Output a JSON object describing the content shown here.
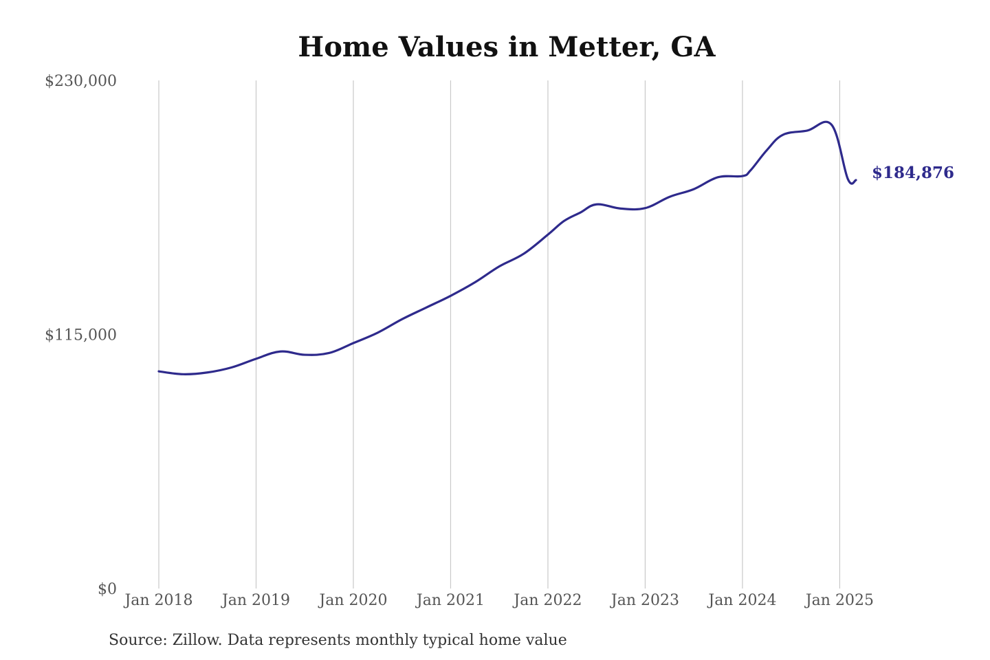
{
  "chart_data": {
    "type": "line",
    "title": "Home Values in Metter, GA",
    "source_note": "Source: Zillow. Data represents monthly typical home value",
    "ylim": [
      0,
      230000
    ],
    "y_ticks": [
      {
        "value": 0,
        "label": "$0"
      },
      {
        "value": 115000,
        "label": "$115,000"
      },
      {
        "value": 230000,
        "label": "$230,000"
      }
    ],
    "x_range": [
      "2018-01",
      "2025-03"
    ],
    "x_ticks": [
      {
        "date": "2018-01",
        "label": "Jan 2018"
      },
      {
        "date": "2019-01",
        "label": "Jan 2019"
      },
      {
        "date": "2020-01",
        "label": "Jan 2020"
      },
      {
        "date": "2021-01",
        "label": "Jan 2021"
      },
      {
        "date": "2022-01",
        "label": "Jan 2022"
      },
      {
        "date": "2023-01",
        "label": "Jan 2023"
      },
      {
        "date": "2024-01",
        "label": "Jan 2024"
      },
      {
        "date": "2025-01",
        "label": "Jan 2025"
      }
    ],
    "grid": {
      "vertical": true,
      "horizontal": false
    },
    "series_color": "#2e2a8c",
    "end_label": "$184,876",
    "x": [
      "2018-01",
      "2018-04",
      "2018-07",
      "2018-10",
      "2019-01",
      "2019-04",
      "2019-07",
      "2019-10",
      "2020-01",
      "2020-04",
      "2020-07",
      "2020-10",
      "2021-01",
      "2021-04",
      "2021-07",
      "2021-10",
      "2022-01",
      "2022-03",
      "2022-05",
      "2022-07",
      "2022-10",
      "2023-01",
      "2023-04",
      "2023-07",
      "2023-10",
      "2024-01",
      "2024-02",
      "2024-04",
      "2024-06",
      "2024-09",
      "2024-12",
      "2025-02",
      "2025-03"
    ],
    "values": [
      98300,
      97000,
      97800,
      100100,
      104000,
      107300,
      105800,
      106600,
      111100,
      115800,
      121900,
      127200,
      132500,
      138600,
      145800,
      151500,
      160200,
      166400,
      170200,
      173900,
      172000,
      172200,
      177300,
      180800,
      186200,
      186700,
      189300,
      198400,
      205400,
      207300,
      209900,
      185400,
      184876
    ]
  }
}
